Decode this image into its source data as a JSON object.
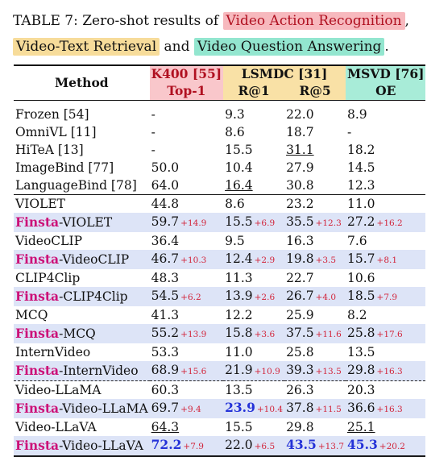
{
  "caption": {
    "prefix": "TABLE 7: Zero-shot results of",
    "task1": "Video Action Recognition",
    "comma": ",",
    "task2": "Video-Text Retrieval",
    "and": "and",
    "task3": "Video Question Answering",
    "period": "."
  },
  "header": {
    "method": "Method",
    "k400": "K400 [55]",
    "lsmdc": "LSMDC [31]",
    "msvd": "MSVD [76]",
    "top1": "Top-1",
    "r1": "R@1",
    "r5": "R@5",
    "oe": "OE"
  },
  "colors": {
    "task_red": "#f7b9be",
    "task_yellow": "#f7dc9a",
    "task_teal": "#93e6cf",
    "finsta_pink": "#cc1178",
    "gain_red": "#d2243a",
    "best_blue": "#2432d8",
    "finsta_row_bg": "#dde4f7"
  },
  "rows": [
    {
      "method": "Frozen [54]",
      "k400": "-",
      "r1": "9.3",
      "r5": "22.0",
      "oe": "8.9"
    },
    {
      "method": "OmniVL [11]",
      "k400": "-",
      "r1": "8.6",
      "r5": "18.7",
      "oe": "-"
    },
    {
      "method": "HiTeA [13]",
      "k400": "-",
      "r1": "15.5",
      "r5": "31.1",
      "oe": "18.2"
    },
    {
      "method": "ImageBind [77]",
      "k400": "50.0",
      "r1": "10.4",
      "r5": "27.9",
      "oe": "14.5"
    },
    {
      "method": "LanguageBind [78]",
      "k400": "64.0",
      "r1": "16.4",
      "r5": "30.8",
      "oe": "12.3"
    },
    {
      "method": "VIOLET",
      "k400": "44.8",
      "r1": "8.6",
      "r5": "23.2",
      "oe": "11.0"
    },
    {
      "prefix": "Finsta",
      "method": "-VIOLET",
      "k400": "59.7",
      "k400_gain": "+14.9",
      "r1": "15.5",
      "r1_gain": "+6.9",
      "r5": "35.5",
      "r5_gain": "+12.3",
      "oe": "27.2",
      "oe_gain": "+16.2"
    },
    {
      "method": "VideoCLIP",
      "k400": "36.4",
      "r1": "9.5",
      "r5": "16.3",
      "oe": "7.6"
    },
    {
      "prefix": "Finsta",
      "method": "-VideoCLIP",
      "k400": "46.7",
      "k400_gain": "+10.3",
      "r1": "12.4",
      "r1_gain": "+2.9",
      "r5": "19.8",
      "r5_gain": "+3.5",
      "oe": "15.7",
      "oe_gain": "+8.1"
    },
    {
      "method": "CLIP4Clip",
      "k400": "48.3",
      "r1": "11.3",
      "r5": "22.7",
      "oe": "10.6"
    },
    {
      "prefix": "Finsta",
      "method": "-CLIP4Clip",
      "k400": "54.5",
      "k400_gain": "+6.2",
      "r1": "13.9",
      "r1_gain": "+2.6",
      "r5": "26.7",
      "r5_gain": "+4.0",
      "oe": "18.5",
      "oe_gain": "+7.9"
    },
    {
      "method": "MCQ",
      "k400": "41.3",
      "r1": "12.2",
      "r5": "25.9",
      "oe": "8.2"
    },
    {
      "prefix": "Finsta",
      "method": "-MCQ",
      "k400": "55.2",
      "k400_gain": "+13.9",
      "r1": "15.8",
      "r1_gain": "+3.6",
      "r5": "37.5",
      "r5_gain": "+11.6",
      "oe": "25.8",
      "oe_gain": "+17.6"
    },
    {
      "method": "InternVideo",
      "k400": "53.3",
      "r1": "11.0",
      "r5": "25.8",
      "oe": "13.5"
    },
    {
      "prefix": "Finsta",
      "method": "-InternVideo",
      "k400": "68.9",
      "k400_gain": "+15.6",
      "r1": "21.9",
      "r1_gain": "+10.9",
      "r5": "39.3",
      "r5_gain": "+13.5",
      "oe": "29.8",
      "oe_gain": "+16.3"
    },
    {
      "method": "Video-LLaMA",
      "k400": "60.3",
      "r1": "13.5",
      "r5": "26.3",
      "oe": "20.3"
    },
    {
      "prefix": "Finsta",
      "method": "-Video-LLaMA",
      "k400": "69.7",
      "k400_gain": "+9.4",
      "r1": "23.9",
      "r1_gain": "+10.4",
      "r5": "37.8",
      "r5_gain": "+11.5",
      "oe": "36.6",
      "oe_gain": "+16.3"
    },
    {
      "method": "Video-LLaVA",
      "k400": "64.3",
      "r1": "15.5",
      "r5": "29.8",
      "oe": "25.1"
    },
    {
      "prefix": "Finsta",
      "method": "-Video-LLaVA",
      "k400": "72.2",
      "k400_gain": "+7.9",
      "r1": "22.0",
      "r1_gain": "+6.5",
      "r5": "43.5",
      "r5_gain": "+13.7",
      "oe": "45.3",
      "oe_gain": "+20.2"
    }
  ]
}
